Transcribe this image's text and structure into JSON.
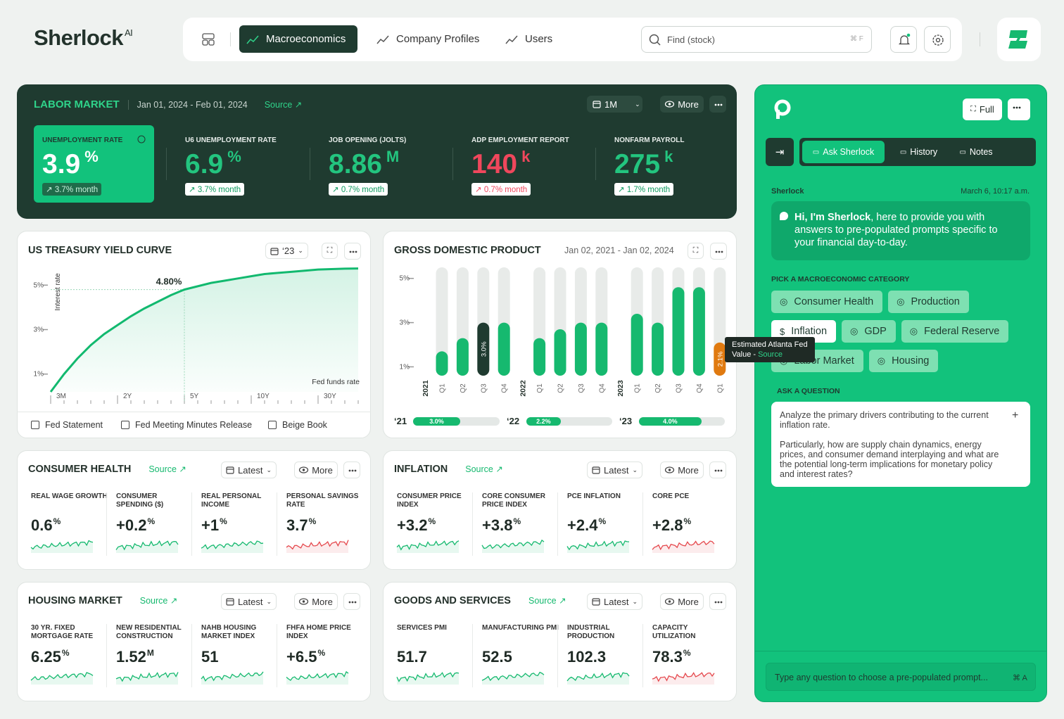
{
  "header": {
    "brand": "Sherlock",
    "brand_sup": "AI",
    "tabs": [
      {
        "label": "Macroeconomics",
        "active": true
      },
      {
        "label": "Company Profiles"
      },
      {
        "label": "Users"
      }
    ],
    "search": "Find (stock)",
    "search_shortcut": "⌘ F"
  },
  "labor_market": {
    "title": "LABOR MARKET",
    "dates": "Jan 01, 2024 - Feb 01, 2024",
    "source": "Source ↗",
    "period": "1M",
    "more": "More",
    "metrics": [
      {
        "label": "UNEMPLOYMENT RATE",
        "value": "3.9",
        "unit": "%",
        "change": "↗ 3.7% month",
        "selected": true
      },
      {
        "label": "U6 UNEMPLOYMENT RATE",
        "value": "6.9",
        "unit": "%",
        "change": "↗ 3.7% month"
      },
      {
        "label": "JOB OPENING (JOLTS)",
        "value": "8.86",
        "unit": "M",
        "change": "↗ 0.7% month"
      },
      {
        "label": "ADP EMPLOYMENT REPORT",
        "value": "140",
        "unit": "k",
        "change": "↗ 0.7% month",
        "color": "#f0475c"
      },
      {
        "label": "NONFARM PAYROLL",
        "value": "275",
        "unit": "k",
        "change": "↗ 1.7% month"
      }
    ]
  },
  "treasury": {
    "title": "US TREASURY YIELD CURVE",
    "filter": "‘23",
    "y_label": "Interest rate",
    "x_note": "Fed funds rate",
    "chart": {
      "type": "line",
      "color": "#12b96f",
      "categories": [
        "3M",
        null,
        null,
        null,
        null,
        "2Y",
        null,
        null,
        null,
        null,
        "5Y",
        null,
        null,
        null,
        null,
        "10Y",
        null,
        null,
        null,
        null,
        "30Y",
        null,
        null,
        null
      ],
      "values": [
        0.2,
        1.0,
        1.7,
        2.3,
        2.8,
        3.2,
        3.6,
        3.95,
        4.25,
        4.55,
        4.8,
        4.95,
        5.1,
        5.2,
        5.3,
        5.4,
        5.5,
        5.55,
        5.6,
        5.65,
        5.7,
        5.72,
        5.74,
        5.75
      ],
      "value_labels": [
        null,
        null,
        null,
        null,
        null,
        null,
        null,
        null,
        null,
        null,
        "4.80%",
        null,
        null,
        null,
        null,
        null,
        null,
        null,
        null,
        null,
        null,
        null,
        null,
        null
      ],
      "ylim": [
        0.2,
        5.8
      ],
      "yticks": [
        {
          "value": 1,
          "label": "1%"
        },
        {
          "value": 3,
          "label": "3%"
        },
        {
          "value": 5,
          "label": "5%"
        }
      ]
    },
    "links": [
      "Fed Statement",
      "Fed Meeting Minutes Release",
      "Beige Book"
    ]
  },
  "gdp": {
    "title": "GROSS DOMESTIC PRODUCT",
    "dates": "Jan 02, 2021 - Jan 02, 2024",
    "chart": {
      "type": "bar",
      "ylim": [
        0.6,
        5.5
      ],
      "yticks": [
        {
          "value": 1,
          "label": "1%"
        },
        {
          "value": 3,
          "label": "3%"
        },
        {
          "value": 5,
          "label": "5%"
        }
      ],
      "groups": [
        {
          "label": "2021",
          "categories": [
            "Q1",
            "Q2",
            "Q3",
            "Q4"
          ],
          "values": [
            1.7,
            2.3,
            3.0,
            3.0
          ],
          "value_labels": [
            null,
            null,
            "3.0%",
            null
          ],
          "colors": [
            "#16b96f",
            "#16b96f",
            "#1f3b30",
            "#16b96f"
          ]
        },
        {
          "label": "2022",
          "categories": [
            "Q1",
            "Q2",
            "Q3",
            "Q4"
          ],
          "values": [
            2.3,
            2.7,
            3.0,
            3.0
          ],
          "value_labels": [
            null,
            null,
            null,
            null
          ],
          "colors": [
            "#16b96f",
            "#16b96f",
            "#16b96f",
            "#16b96f"
          ]
        },
        {
          "label": "2023",
          "categories": [
            "Q1",
            "Q2",
            "Q3",
            "Q4"
          ],
          "values": [
            3.4,
            3.0,
            4.6,
            4.6
          ],
          "value_labels": [
            null,
            null,
            null,
            null
          ],
          "colors": [
            "#16b96f",
            "#16b96f",
            "#16b96f",
            "#16b96f"
          ]
        },
        {
          "label": null,
          "categories": [
            "Q1"
          ],
          "values": [
            2.1
          ],
          "value_labels": [
            "2.1%"
          ],
          "colors": [
            "#e07a10"
          ]
        }
      ]
    },
    "tooltip": {
      "text": "Estimated Atlanta Fed Value - ",
      "link": "Source"
    },
    "annual": [
      {
        "label": "‘21",
        "value": 3.0,
        "value_label": "3.0%"
      },
      {
        "label": "‘22",
        "value": 2.2,
        "value_label": "2.2%"
      },
      {
        "label": "‘23",
        "value": 4.0,
        "value_label": "4.0%"
      }
    ]
  },
  "panels": [
    {
      "title": "CONSUMER HEALTH",
      "source": "Source ↗",
      "filter": "Latest",
      "more": "More",
      "metrics": [
        {
          "label": "REAL WAGE GROWTH",
          "value": "0.6",
          "unit": "%"
        },
        {
          "label": "CONSUMER SPENDING ($)",
          "value": "+0.2",
          "unit": "%"
        },
        {
          "label": "REAL PERSONAL INCOME",
          "value": "+1",
          "unit": "%"
        },
        {
          "label": "PERSONAL SAVINGS RATE",
          "value": "3.7",
          "unit": "%",
          "color": "#e5484d"
        }
      ]
    },
    {
      "title": "INFLATION",
      "source": "Source ↗",
      "filter": "Latest",
      "more": "More",
      "metrics": [
        {
          "label": "CONSUMER PRICE INDEX",
          "value": "+3.2",
          "unit": "%"
        },
        {
          "label": "CORE CONSUMER PRICE INDEX",
          "value": "+3.8",
          "unit": "%"
        },
        {
          "label": "PCE INFLATION",
          "value": "+2.4",
          "unit": "%"
        },
        {
          "label": "CORE PCE",
          "value": "+2.8",
          "unit": "%",
          "color": "#e5484d"
        }
      ]
    },
    {
      "title": "HOUSING MARKET",
      "source": "Source ↗",
      "filter": "Latest",
      "more": "More",
      "metrics": [
        {
          "label": "30 YR. FIXED MORTGAGE RATE",
          "value": "6.25",
          "unit": "%"
        },
        {
          "label": "NEW RESIDENTIAL CONSTRUCTION",
          "value": "1.52",
          "unit": "M"
        },
        {
          "label": "NAHB HOUSING MARKET INDEX",
          "value": "51"
        },
        {
          "label": "FHFA HOME PRICE INDEX",
          "value": "+6.5",
          "unit": "%"
        }
      ]
    },
    {
      "title": "GOODS AND SERVICES",
      "source": "Source ↗",
      "filter": "Latest",
      "more": "More",
      "metrics": [
        {
          "label": "SERVICES PMI",
          "value": "51.7"
        },
        {
          "label": "MANUFACTURING PMI",
          "value": "52.5"
        },
        {
          "label": "INDUSTRIAL PRODUCTION",
          "value": "102.3"
        },
        {
          "label": "CAPACITY UTILIZATION",
          "value": "78.3",
          "unit": "%",
          "color": "#e5484d"
        }
      ]
    }
  ],
  "assistant": {
    "full": "Full",
    "tabs": [
      {
        "label": "Ask Sherlock",
        "active": true
      },
      {
        "label": "History"
      },
      {
        "label": "Notes"
      }
    ],
    "sender": "Sherlock",
    "time": "March 6, 10:17 a.m.",
    "greeting": "Hi, I'm Sherlock",
    "message": ", here to provide you with answers to pre-populated prompts specific to your financial day-to-day.",
    "category_heading": "PICK A MACROECONOMIC CATEGORY",
    "categories": [
      {
        "label": "Consumer Health"
      },
      {
        "label": "Production"
      },
      {
        "label": "Inflation",
        "selected": true
      },
      {
        "label": "GDP"
      },
      {
        "label": "Federal Reserve"
      },
      {
        "label": "Labor Market"
      },
      {
        "label": "Housing"
      }
    ],
    "question_heading": "ASK A QUESTION",
    "question": [
      "Analyze the primary drivers contributing to the current inflation rate.",
      "Particularly, how are supply chain dynamics, energy prices, and consumer demand interplaying and what are the potential long-term implications for monetary policy and interest rates?"
    ],
    "input_placeholder": "Type any question to choose a pre-populated prompt...",
    "input_shortcut": "⌘ A"
  }
}
